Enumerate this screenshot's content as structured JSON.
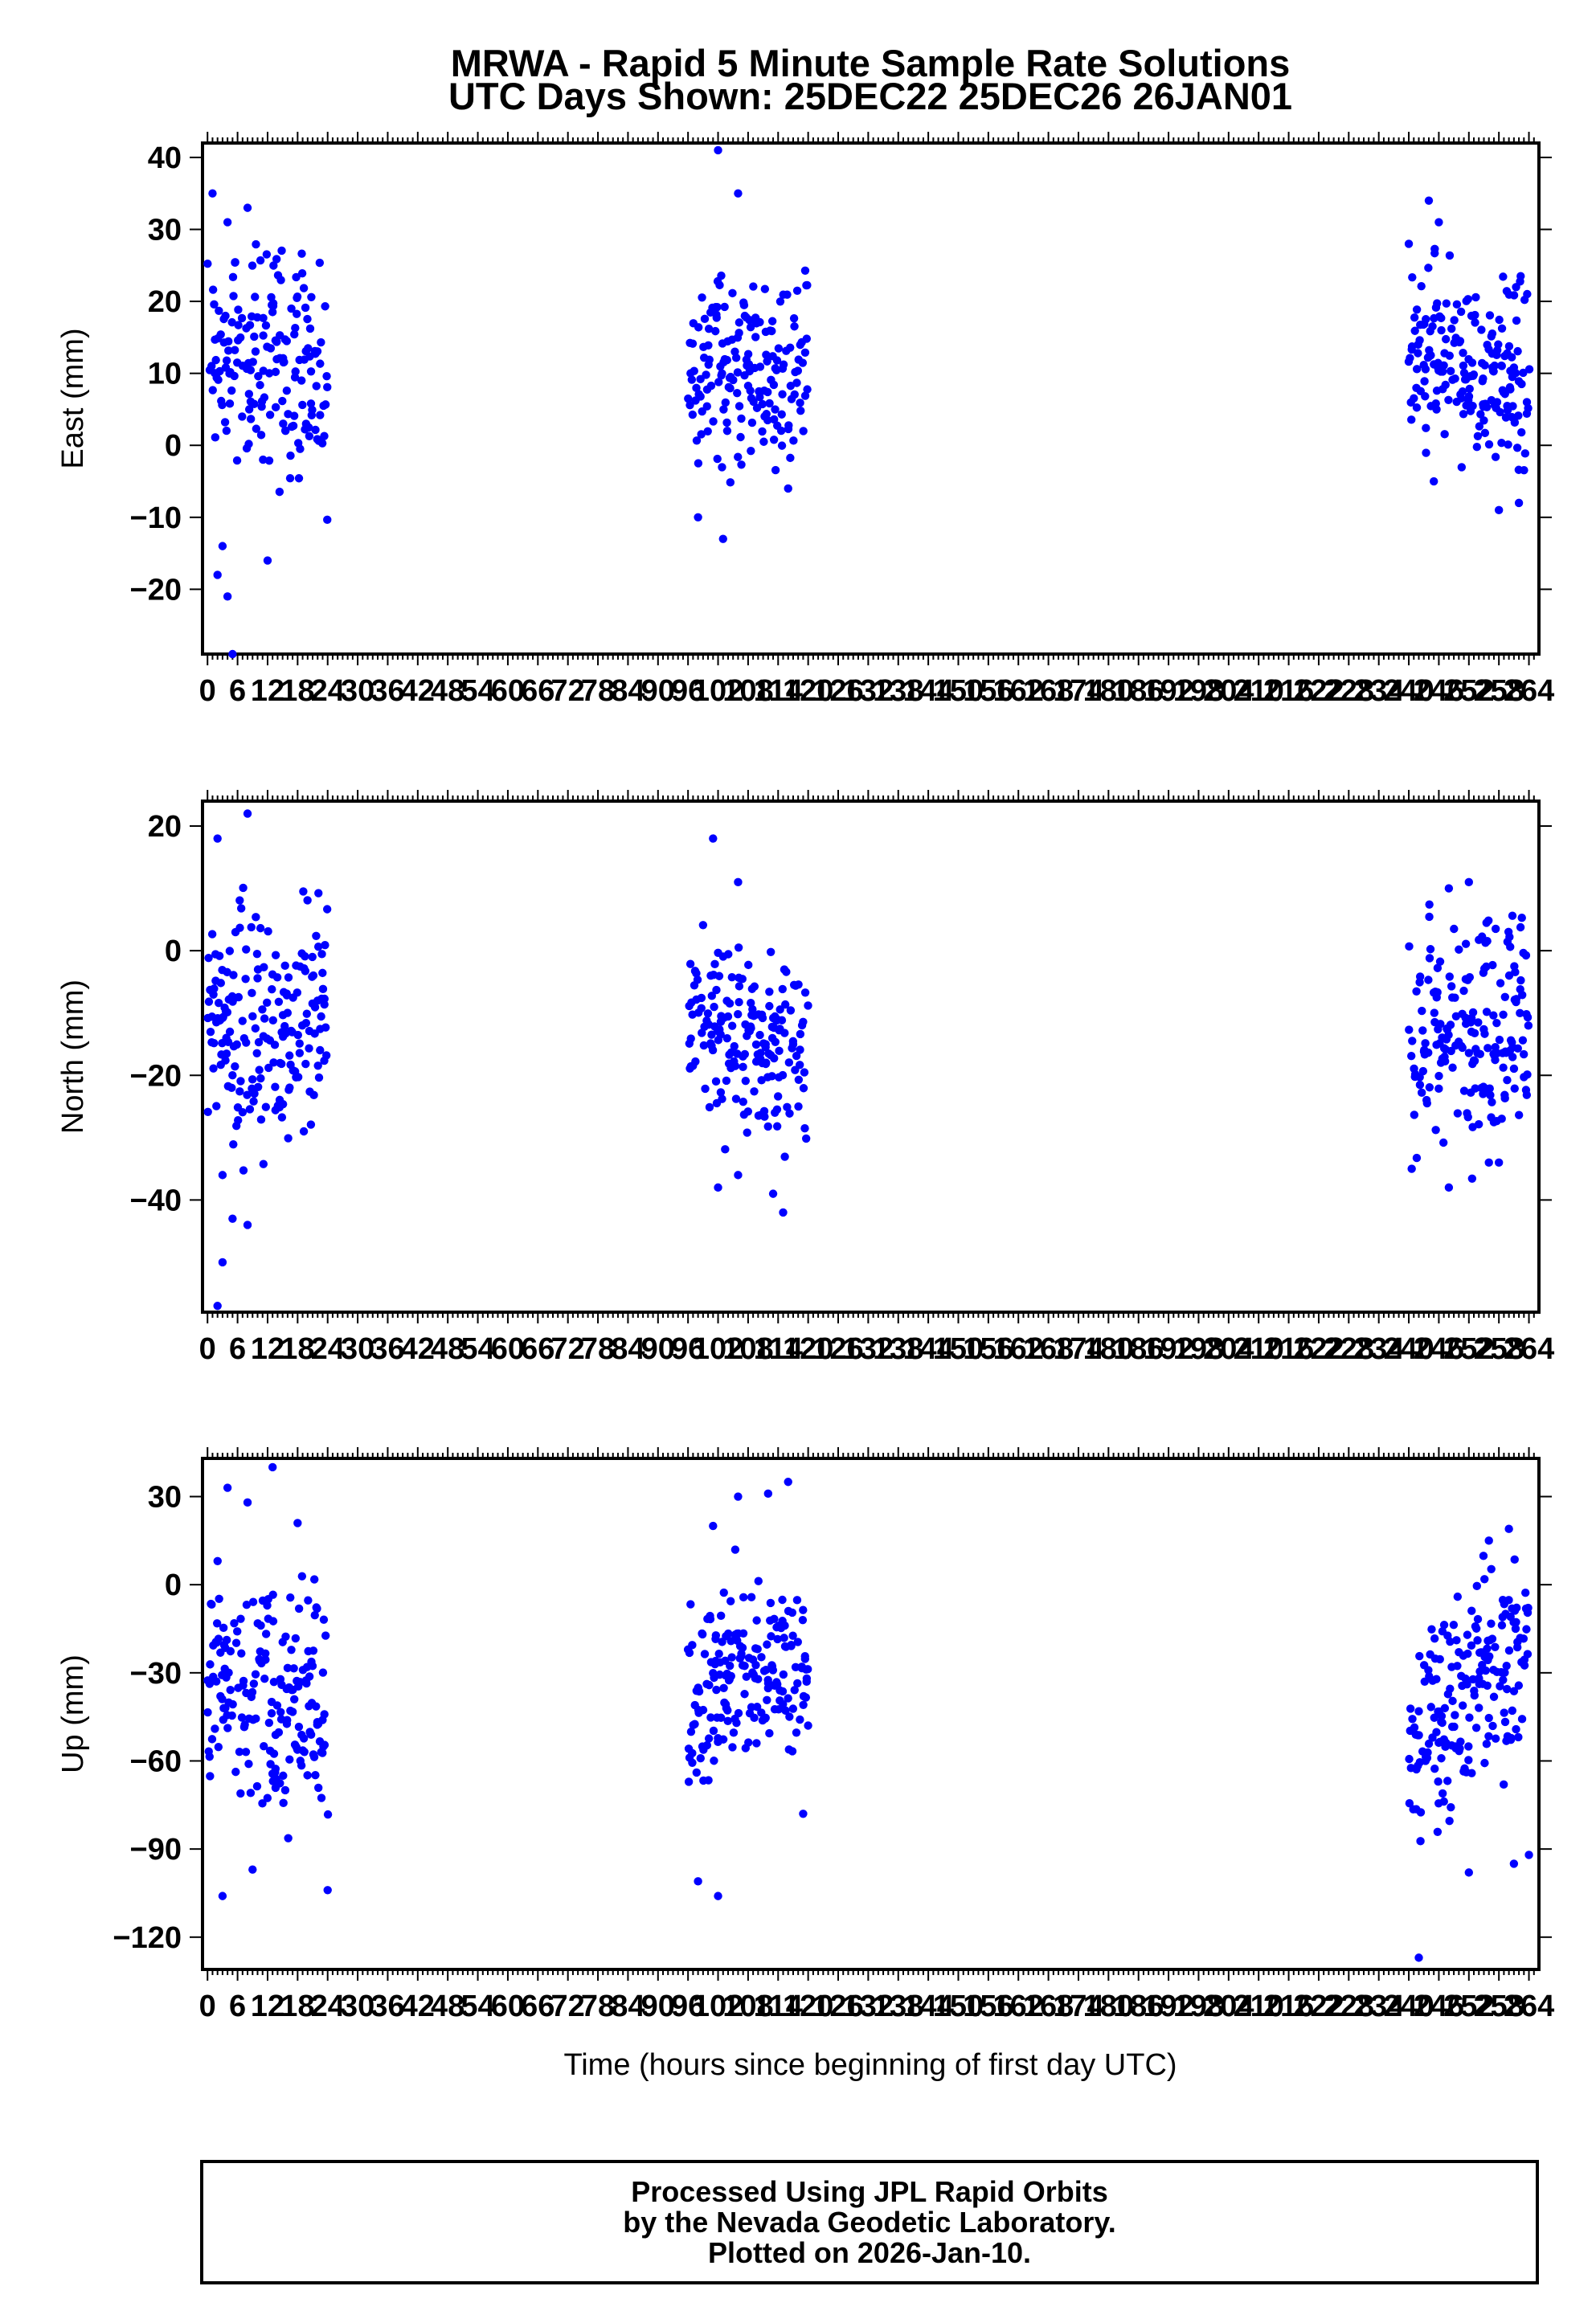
{
  "title": {
    "line1": "MRWA - Rapid 5 Minute Sample Rate Solutions",
    "line2": "UTC Days Shown:  25DEC22 25DEC26 26JAN01"
  },
  "xlabel": "Time (hours since beginning of first day UTC)",
  "footer": {
    "line1": "Processed Using JPL Rapid Orbits",
    "line2": "by the Nevada Geodetic Laboratory.",
    "line3": "Plotted on 2026-Jan-10."
  },
  "colors": {
    "points": "#0000ff",
    "axes": "#000000",
    "background": "#ffffff"
  },
  "chart_data": [
    {
      "type": "scatter",
      "ylabel": "East (mm)",
      "xlim": [
        -1,
        266
      ],
      "ylim": [
        -29,
        42
      ],
      "xticks": [
        0,
        6,
        12,
        18,
        24,
        30,
        36,
        42,
        48,
        54,
        60,
        66,
        72,
        78,
        84,
        90,
        96,
        102,
        108,
        114,
        120,
        126,
        132,
        138,
        144,
        150,
        156,
        162,
        168,
        174,
        180,
        186,
        192,
        198,
        204,
        210,
        216,
        222,
        228,
        234,
        240,
        246,
        252,
        258,
        264
      ],
      "yticks": [
        40,
        30,
        20,
        10,
        0,
        -10,
        -20
      ],
      "series": [
        {
          "x_range": [
            0,
            24
          ],
          "center": [
            13,
            12,
            11
          ],
          "spread": 8,
          "outliers": [
            [
              1,
              35
            ],
            [
              4,
              31
            ],
            [
              8,
              33
            ],
            [
              2,
              -18
            ],
            [
              4,
              -21
            ],
            [
              5,
              -29
            ],
            [
              12,
              -16
            ],
            [
              3,
              -14
            ]
          ]
        },
        {
          "x_range": [
            96,
            120
          ],
          "center": [
            11,
            10,
            11
          ],
          "spread": 7,
          "outliers": [
            [
              102,
              41
            ],
            [
              106,
              35
            ],
            [
              98,
              -10
            ],
            [
              103,
              -13
            ],
            [
              116,
              -6
            ]
          ]
        },
        {
          "x_range": [
            240,
            264
          ],
          "center": [
            12,
            10,
            9
          ],
          "spread": 7,
          "outliers": [
            [
              244,
              34
            ],
            [
              246,
              31
            ],
            [
              240,
              28
            ],
            [
              258,
              -9
            ],
            [
              262,
              -8
            ],
            [
              245,
              -5
            ]
          ]
        }
      ]
    },
    {
      "type": "scatter",
      "ylabel": "North (mm)",
      "xlim": [
        -1,
        266
      ],
      "ylim": [
        -58,
        24
      ],
      "xticks": [
        0,
        6,
        12,
        18,
        24,
        30,
        36,
        42,
        48,
        54,
        60,
        66,
        72,
        78,
        84,
        90,
        96,
        102,
        108,
        114,
        120,
        126,
        132,
        138,
        144,
        150,
        156,
        162,
        168,
        174,
        180,
        186,
        192,
        198,
        204,
        210,
        216,
        222,
        228,
        234,
        240,
        246,
        252,
        258,
        264
      ],
      "yticks": [
        20,
        0,
        -20,
        -40
      ],
      "series": [
        {
          "x_range": [
            0,
            24
          ],
          "center": [
            -12,
            -13,
            -10
          ],
          "spread": 10,
          "outliers": [
            [
              8,
              22
            ],
            [
              2,
              18
            ],
            [
              2,
              -57
            ],
            [
              3,
              -50
            ],
            [
              5,
              -43
            ],
            [
              8,
              -44
            ],
            [
              3,
              -36
            ]
          ]
        },
        {
          "x_range": [
            96,
            120
          ],
          "center": [
            -10,
            -15,
            -16
          ],
          "spread": 8,
          "outliers": [
            [
              101,
              18
            ],
            [
              106,
              11
            ],
            [
              102,
              -38
            ],
            [
              106,
              -36
            ],
            [
              115,
              -42
            ],
            [
              113,
              -39
            ]
          ]
        },
        {
          "x_range": [
            240,
            264
          ],
          "center": [
            -14,
            -12,
            -10
          ],
          "spread": 9,
          "outliers": [
            [
              252,
              11
            ],
            [
              248,
              10
            ],
            [
              248,
              -38
            ],
            [
              256,
              -34
            ],
            [
              258,
              -34
            ]
          ]
        }
      ]
    },
    {
      "type": "scatter",
      "ylabel": "Up (mm)",
      "xlim": [
        -1,
        266
      ],
      "ylim": [
        -131,
        43
      ],
      "xticks": [
        0,
        6,
        12,
        18,
        24,
        30,
        36,
        42,
        48,
        54,
        60,
        66,
        72,
        78,
        84,
        90,
        96,
        102,
        108,
        114,
        120,
        126,
        132,
        138,
        144,
        150,
        156,
        162,
        168,
        174,
        180,
        186,
        192,
        198,
        204,
        210,
        216,
        222,
        228,
        234,
        240,
        246,
        252,
        258,
        264
      ],
      "yticks": [
        30,
        0,
        -30,
        -60,
        -90,
        -120
      ],
      "series": [
        {
          "x_range": [
            0,
            24
          ],
          "center": [
            -30,
            -42,
            -45
          ],
          "spread": 22,
          "outliers": [
            [
              13,
              40
            ],
            [
              4,
              33
            ],
            [
              8,
              28
            ],
            [
              18,
              21
            ],
            [
              3,
              -106
            ],
            [
              24,
              -104
            ],
            [
              9,
              -97
            ]
          ]
        },
        {
          "x_range": [
            96,
            120
          ],
          "center": [
            -38,
            -30,
            -25
          ],
          "spread": 17,
          "outliers": [
            [
              116,
              35
            ],
            [
              106,
              30
            ],
            [
              112,
              31
            ],
            [
              101,
              20
            ],
            [
              102,
              -106
            ],
            [
              98,
              -101
            ],
            [
              119,
              -78
            ]
          ]
        },
        {
          "x_range": [
            240,
            264
          ],
          "center": [
            -55,
            -35,
            -20
          ],
          "spread": 19,
          "outliers": [
            [
              242,
              -127
            ],
            [
              264,
              -92
            ],
            [
              261,
              -95
            ],
            [
              252,
              -98
            ],
            [
              260,
              19
            ],
            [
              256,
              15
            ]
          ]
        }
      ]
    }
  ]
}
